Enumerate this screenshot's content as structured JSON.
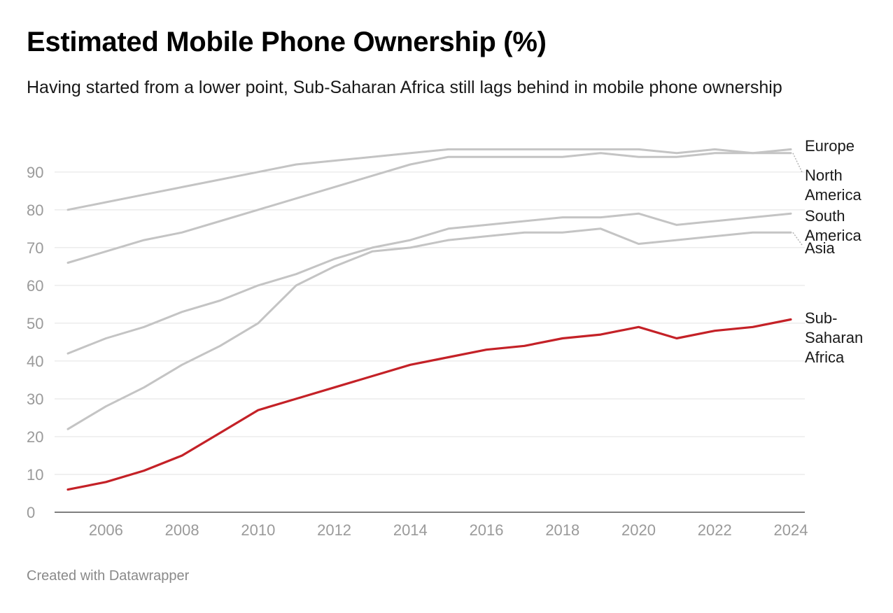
{
  "title": "Estimated Mobile Phone Ownership (%)",
  "subtitle": "Having started from a lower point, Sub-Saharan Africa still lags behind in mobile phone ownership",
  "footer": "Created with Datawrapper",
  "colors": {
    "highlight": "#c42127",
    "context": "#c4c4c4",
    "grid": "#e2e2e2",
    "axis": "#333333",
    "tick_text": "#9a9a9a"
  },
  "chart_data": {
    "type": "line",
    "title": "Estimated Mobile Phone Ownership (%)",
    "subtitle": "Having started from a lower point, Sub-Saharan Africa still lags behind in mobile phone ownership",
    "xlabel": "",
    "ylabel": "",
    "x": [
      2005,
      2006,
      2007,
      2008,
      2009,
      2010,
      2011,
      2012,
      2013,
      2014,
      2015,
      2016,
      2017,
      2018,
      2019,
      2020,
      2021,
      2022,
      2023,
      2024
    ],
    "xlim": [
      2005,
      2024
    ],
    "ylim": [
      0,
      97
    ],
    "x_ticks": [
      "2006",
      "2008",
      "2010",
      "2012",
      "2014",
      "2016",
      "2018",
      "2020",
      "2022",
      "2024"
    ],
    "y_ticks": [
      "0",
      "10",
      "20",
      "30",
      "40",
      "50",
      "60",
      "70",
      "80",
      "90"
    ],
    "grid": true,
    "legend": "direct labels at line ends",
    "series": [
      {
        "name": "Europe",
        "color": "#c4c4c4",
        "values": [
          80,
          82,
          84,
          86,
          88,
          90,
          92,
          93,
          94,
          95,
          96,
          96,
          96,
          96,
          96,
          96,
          95,
          96,
          95,
          96
        ]
      },
      {
        "name": "North America",
        "color": "#c4c4c4",
        "values": [
          66,
          69,
          72,
          74,
          77,
          80,
          83,
          86,
          89,
          92,
          94,
          94,
          94,
          94,
          95,
          94,
          94,
          95,
          95,
          95
        ]
      },
      {
        "name": "South America",
        "color": "#c4c4c4",
        "values": [
          42,
          46,
          49,
          53,
          56,
          60,
          63,
          67,
          70,
          72,
          75,
          76,
          77,
          78,
          78,
          79,
          76,
          77,
          78,
          79
        ]
      },
      {
        "name": "Asia",
        "color": "#c4c4c4",
        "values": [
          22,
          28,
          33,
          39,
          44,
          50,
          60,
          65,
          69,
          70,
          72,
          73,
          74,
          74,
          75,
          71,
          72,
          73,
          74,
          74
        ]
      },
      {
        "name": "Sub-Saharan Africa",
        "color": "#c42127",
        "values": [
          6,
          8,
          11,
          15,
          21,
          27,
          30,
          33,
          36,
          39,
          41,
          43,
          44,
          46,
          47,
          49,
          46,
          48,
          49,
          51
        ]
      }
    ],
    "end_labels": [
      {
        "series": "Europe",
        "lines": [
          "Europe"
        ]
      },
      {
        "series": "North America",
        "lines": [
          "North",
          "America"
        ]
      },
      {
        "series": "South America",
        "lines": [
          "South",
          "America"
        ]
      },
      {
        "series": "Asia",
        "lines": [
          "Asia"
        ]
      },
      {
        "series": "Sub-Saharan Africa",
        "lines": [
          "Sub-",
          "Saharan",
          "Africa"
        ]
      }
    ]
  }
}
